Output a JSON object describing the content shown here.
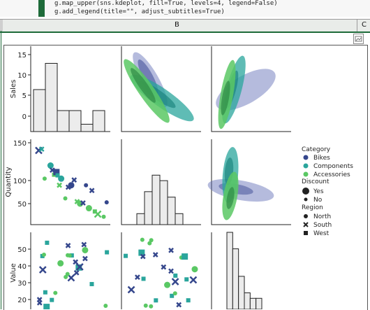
{
  "notebook": {
    "code_lines": [
      "g.map_upper(sns.kdeplot, fill=True, levels=4, legend=False)",
      "g.add_legend(title=\"\", adjust_subtitles=True)"
    ],
    "column_header": "B",
    "next_column_header": "C",
    "colors": {
      "cell_bar": "#1e6b3a",
      "header_bg": "#e9ece9"
    }
  },
  "chart_data": {
    "type": "scatter",
    "variables": [
      "Sales",
      "Quantity",
      "Value"
    ],
    "category_colors": {
      "Bikes": "#35478c",
      "Components": "#2aa59c",
      "Accessories": "#5ac864"
    },
    "axes": {
      "sales_ticks": [
        "15",
        "10",
        "5",
        "0"
      ],
      "quantity_ticks": [
        "150",
        "100",
        "50"
      ],
      "value_ticks": [
        "50",
        "40",
        "30",
        "20"
      ]
    },
    "legend": {
      "category_title": "Category",
      "categories": [
        "Bikes",
        "Components",
        "Accessories"
      ],
      "discount_title": "Discount",
      "discount": [
        "Yes",
        "No"
      ],
      "region_title": "Region",
      "regions": [
        "North",
        "South",
        "West"
      ]
    },
    "sales_histogram": [
      4,
      6.5,
      2,
      2,
      0.7,
      2
    ],
    "quantity_histogram": [
      1,
      3,
      4.5,
      4,
      2.5,
      1
    ],
    "value_histogram": [
      7,
      5.5,
      3,
      1.5,
      1,
      1
    ],
    "quantity_vs_sales": [
      {
        "x": 1,
        "y": 143,
        "c": "Bikes",
        "m": "x"
      },
      {
        "x": 1.5,
        "y": 145,
        "c": "Components",
        "m": "x"
      },
      {
        "x": 2,
        "y": 100,
        "c": "Accessories",
        "m": "o"
      },
      {
        "x": 3,
        "y": 120,
        "c": "Components",
        "m": "o"
      },
      {
        "x": 3.3,
        "y": 113,
        "c": "Bikes",
        "m": "x"
      },
      {
        "x": 3.6,
        "y": 106,
        "c": "Accessories",
        "m": "s"
      },
      {
        "x": 4,
        "y": 110,
        "c": "Bikes",
        "m": "s"
      },
      {
        "x": 4.2,
        "y": 105,
        "c": "Components",
        "m": "s"
      },
      {
        "x": 4.5,
        "y": 90,
        "c": "Accessories",
        "m": "x"
      },
      {
        "x": 4.8,
        "y": 100,
        "c": "Components",
        "m": "o"
      },
      {
        "x": 5.5,
        "y": 70,
        "c": "Accessories",
        "m": "o"
      },
      {
        "x": 6,
        "y": 87,
        "c": "Bikes",
        "m": "x"
      },
      {
        "x": 6.5,
        "y": 90,
        "c": "Bikes",
        "m": "o"
      },
      {
        "x": 7,
        "y": 98,
        "c": "Bikes",
        "m": "x"
      },
      {
        "x": 7.5,
        "y": 65,
        "c": "Accessories",
        "m": "x"
      },
      {
        "x": 8,
        "y": 62,
        "c": "Accessories",
        "m": "o"
      },
      {
        "x": 8.5,
        "y": 63,
        "c": "Bikes",
        "m": "x"
      },
      {
        "x": 9,
        "y": 90,
        "c": "Bikes",
        "m": "o"
      },
      {
        "x": 9.5,
        "y": 55,
        "c": "Accessories",
        "m": "o"
      },
      {
        "x": 10,
        "y": 82,
        "c": "Bikes",
        "m": "x"
      },
      {
        "x": 10.5,
        "y": 50,
        "c": "Accessories",
        "m": "s"
      },
      {
        "x": 11,
        "y": 46,
        "c": "Accessories",
        "m": "x"
      },
      {
        "x": 12,
        "y": 42,
        "c": "Accessories",
        "m": "o"
      },
      {
        "x": 12.5,
        "y": 64,
        "c": "Bikes",
        "m": "o"
      }
    ]
  }
}
